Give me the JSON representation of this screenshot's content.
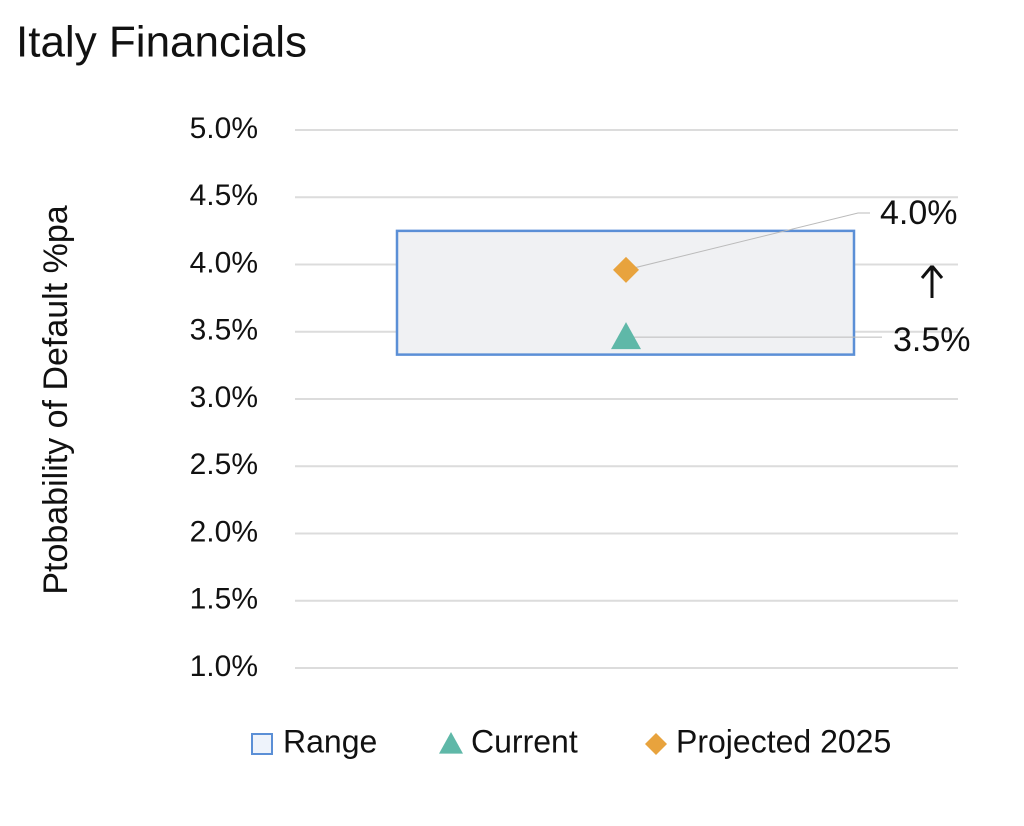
{
  "chart_data": {
    "type": "range",
    "title": "Italy Financials",
    "y_label": "Ptobability of Default %pa",
    "ylim": [
      1,
      5
    ],
    "yticks": [
      {
        "value": 1.0,
        "label": "1.0%"
      },
      {
        "value": 1.5,
        "label": "1.5%"
      },
      {
        "value": 2.0,
        "label": "2.0%"
      },
      {
        "value": 2.5,
        "label": "2.5%"
      },
      {
        "value": 3.0,
        "label": "3.0%"
      },
      {
        "value": 3.5,
        "label": "3.5%"
      },
      {
        "value": 4.0,
        "label": "4.0%"
      },
      {
        "value": 4.5,
        "label": "4.5%"
      },
      {
        "value": 5.0,
        "label": "5.0%"
      }
    ],
    "grid": true,
    "series": [
      {
        "name": "Range",
        "color": "#5b8fd6",
        "fill": "#f0f1f3",
        "low": 3.33,
        "high": 4.25
      },
      {
        "name": "Current",
        "color": "#5fb8a8",
        "marker": "triangle",
        "values": [
          3.46
        ],
        "value_labels": [
          "3.5%"
        ]
      },
      {
        "name": "Projected 2025",
        "color": "#e8a33d",
        "marker": "diamond",
        "values": [
          3.96
        ],
        "value_labels": [
          "4.0%"
        ]
      }
    ]
  }
}
